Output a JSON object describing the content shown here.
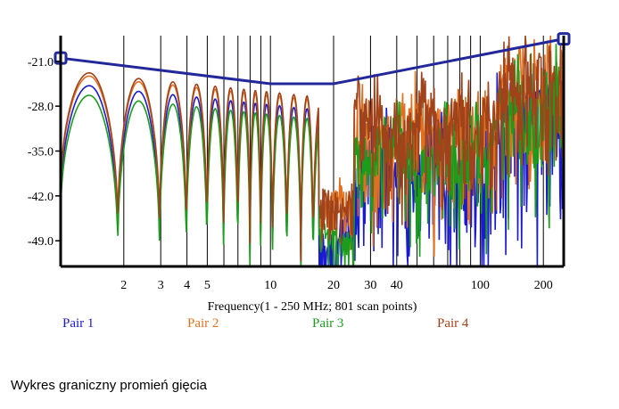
{
  "caption": "Wykres graniczny promień gięcia",
  "chart_data": {
    "type": "line",
    "xlabel": "Frequency(1 - 250 MHz; 801 scan points)",
    "x_scale": "log",
    "xlim": [
      1,
      250
    ],
    "ylim": [
      -53,
      -17
    ],
    "x_ticks": [
      2,
      3,
      4,
      5,
      10,
      20,
      30,
      40,
      100,
      200
    ],
    "x_tick_labels": [
      "2",
      "3",
      "4",
      "5",
      "10",
      "20",
      "30",
      "40",
      "100",
      "200"
    ],
    "y_ticks": [
      -21,
      -28,
      -35,
      -42,
      -49
    ],
    "y_tick_labels": [
      "-21.0",
      "-28.0",
      "-35.0",
      "-42.0",
      "-49.0"
    ],
    "grid": "vertical",
    "legend_position": "bottom",
    "limit_line": {
      "color": "#22279a",
      "x": [
        1,
        10,
        20,
        250
      ],
      "y": [
        -20.5,
        -24.5,
        -24.5,
        -17.5
      ]
    },
    "series": [
      {
        "name": "Pair 1",
        "color": "#1a1ad0",
        "offset": -1.5,
        "hf_base": -36,
        "hf_depth": 14,
        "phase": 0.0
      },
      {
        "name": "Pair 2",
        "color": "#e07020",
        "offset": 0.0,
        "hf_base": -31,
        "hf_depth": 12,
        "phase": 1.3
      },
      {
        "name": "Pair 3",
        "color": "#1c9c1c",
        "offset": -3.0,
        "hf_base": -35,
        "hf_depth": 11,
        "phase": 2.6
      },
      {
        "name": "Pair 4",
        "color": "#a0421a",
        "offset": 0.5,
        "hf_base": -30,
        "hf_depth": 10,
        "phase": 3.9
      }
    ],
    "envelope": {
      "lobe_peaks_x": [
        1.4,
        2.5,
        3.5,
        4.5,
        5.5,
        6.5,
        7.5,
        8.5,
        9.5,
        11,
        13,
        15,
        17
      ],
      "peak_db_at_1mhz": -22.8,
      "peak_slope_db_per_decade": -3.5
    }
  }
}
